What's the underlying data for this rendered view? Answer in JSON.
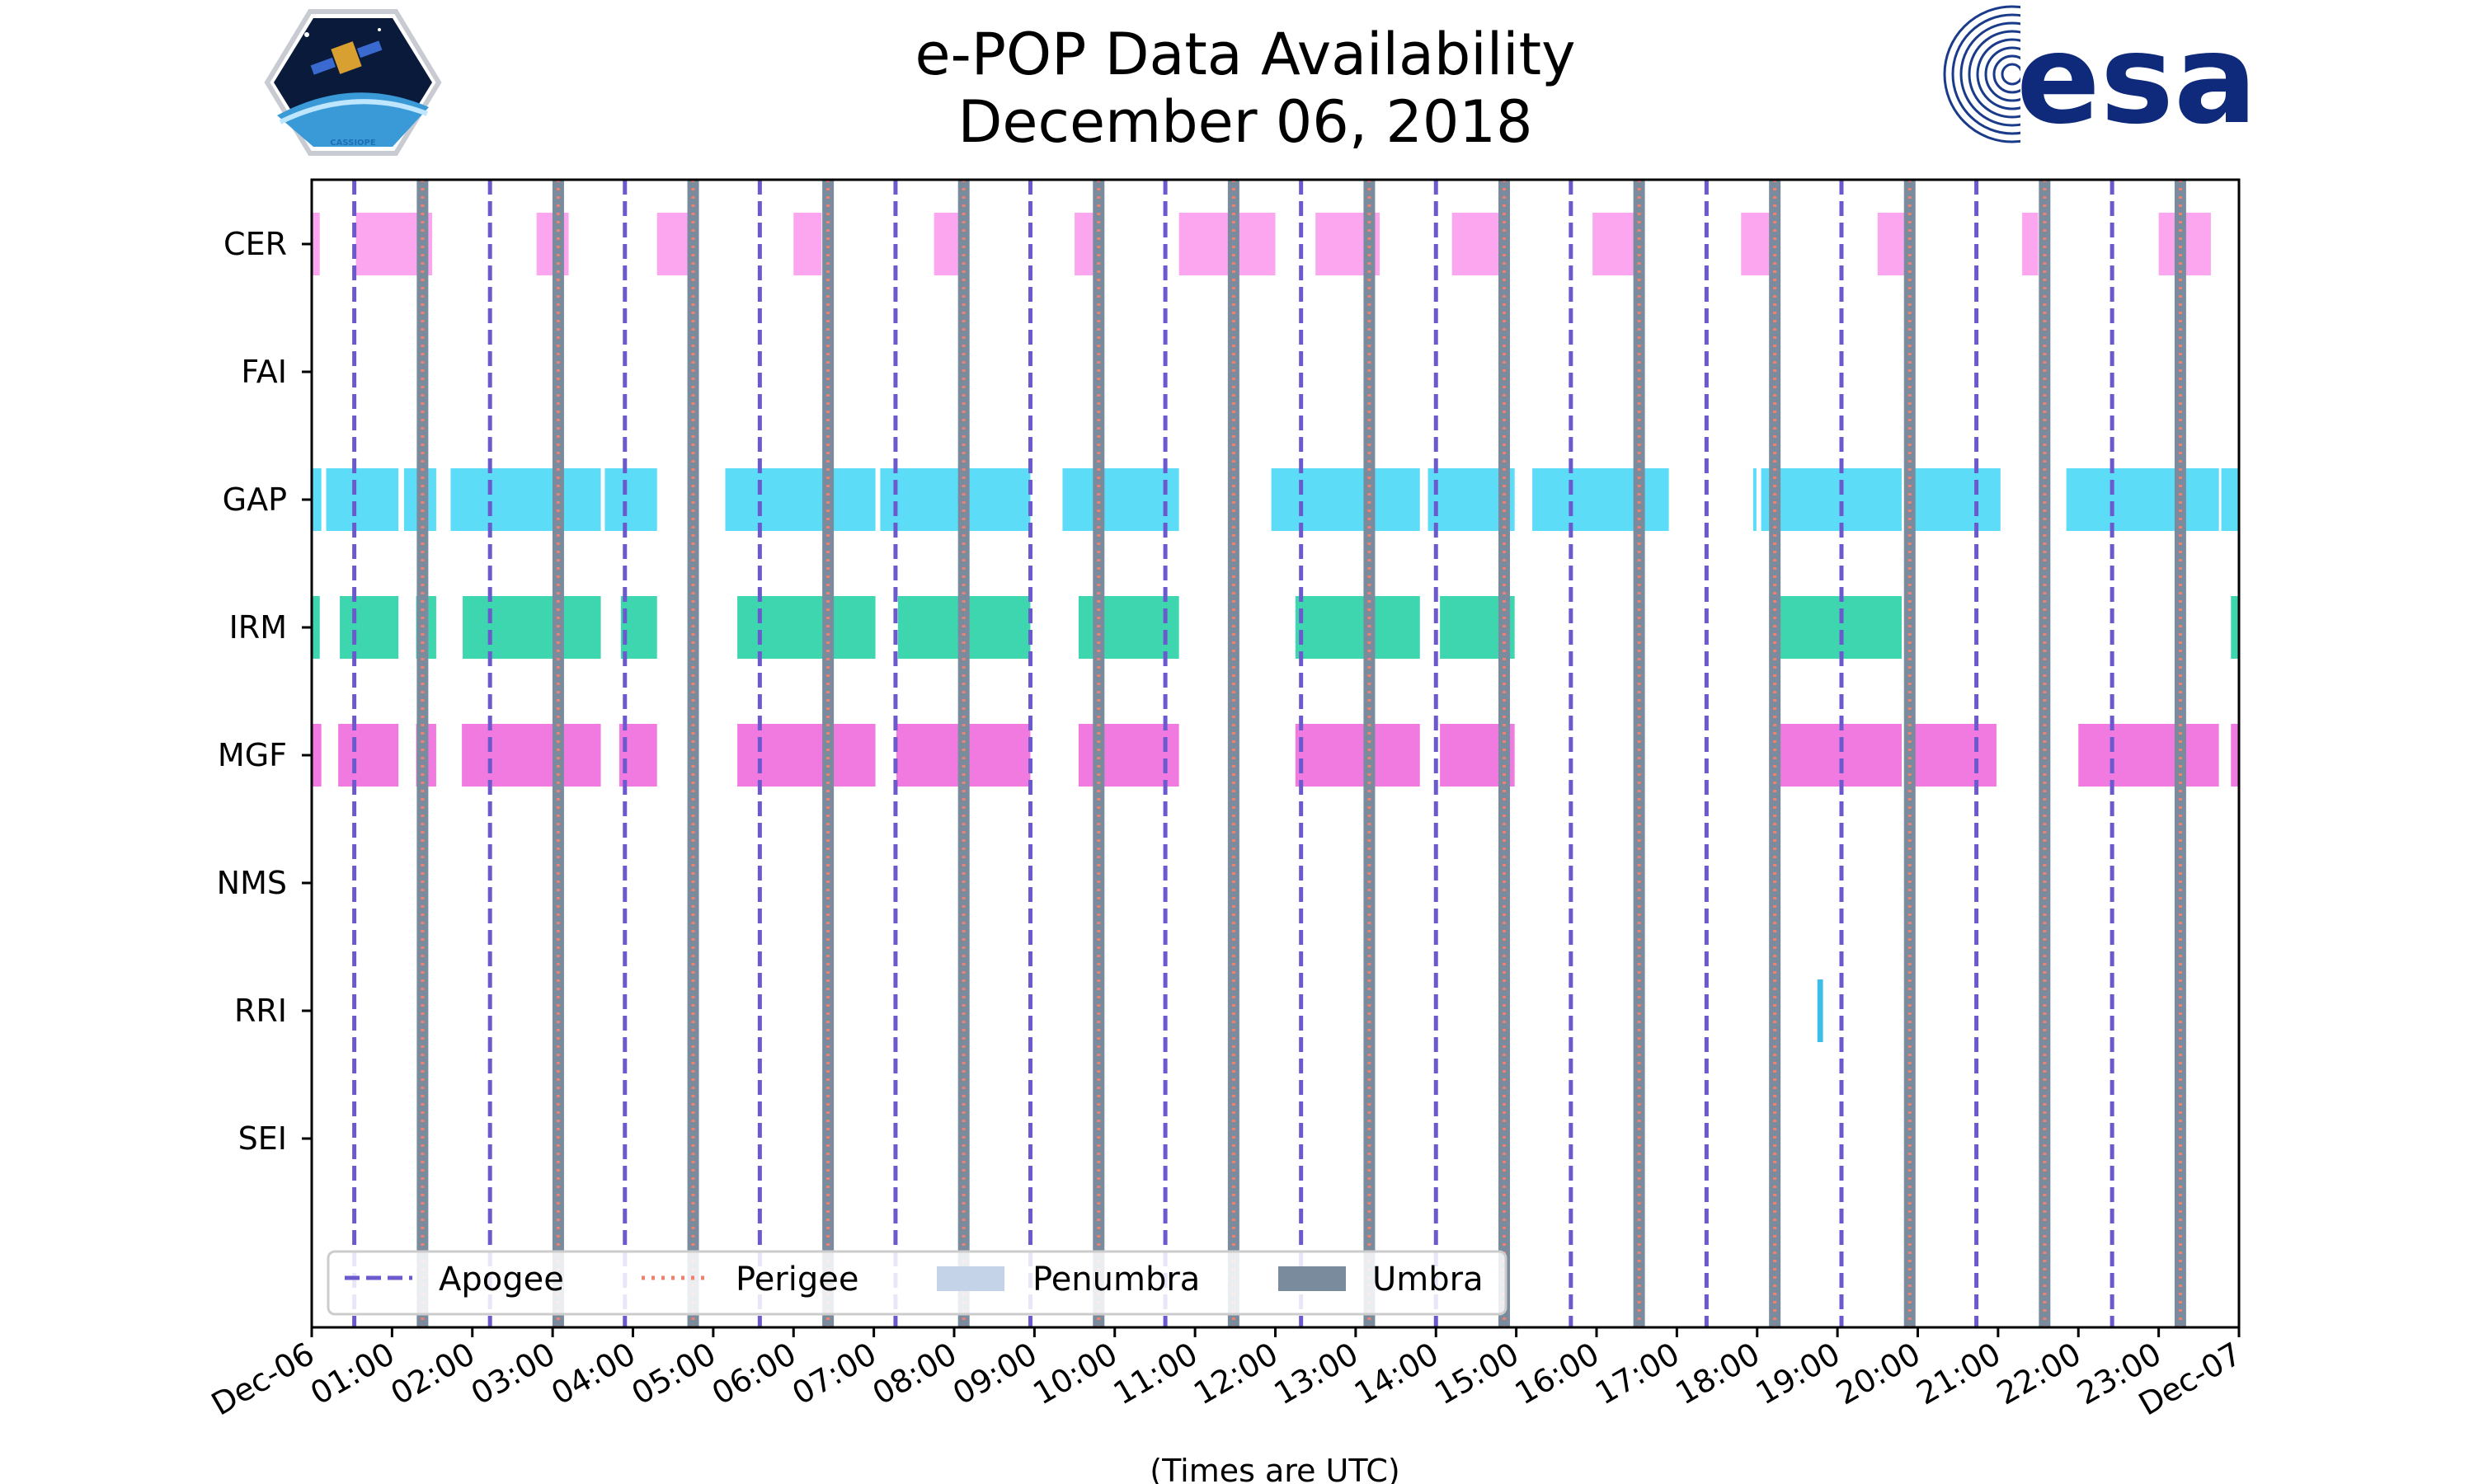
{
  "chart_data": {
    "type": "timeline",
    "title": [
      "e-POP Data Availability",
      "December 06, 2018"
    ],
    "xlabel": "(Times are UTC)",
    "xlim_hours": [
      0,
      24
    ],
    "xticks": [
      {
        "h": 0,
        "label": "Dec-06"
      },
      {
        "h": 1,
        "label": "01:00"
      },
      {
        "h": 2,
        "label": "02:00"
      },
      {
        "h": 3,
        "label": "03:00"
      },
      {
        "h": 4,
        "label": "04:00"
      },
      {
        "h": 5,
        "label": "05:00"
      },
      {
        "h": 6,
        "label": "06:00"
      },
      {
        "h": 7,
        "label": "07:00"
      },
      {
        "h": 8,
        "label": "08:00"
      },
      {
        "h": 9,
        "label": "09:00"
      },
      {
        "h": 10,
        "label": "10:00"
      },
      {
        "h": 11,
        "label": "11:00"
      },
      {
        "h": 12,
        "label": "12:00"
      },
      {
        "h": 13,
        "label": "13:00"
      },
      {
        "h": 14,
        "label": "14:00"
      },
      {
        "h": 15,
        "label": "15:00"
      },
      {
        "h": 16,
        "label": "16:00"
      },
      {
        "h": 17,
        "label": "17:00"
      },
      {
        "h": 18,
        "label": "18:00"
      },
      {
        "h": 19,
        "label": "19:00"
      },
      {
        "h": 20,
        "label": "20:00"
      },
      {
        "h": 21,
        "label": "21:00"
      },
      {
        "h": 22,
        "label": "22:00"
      },
      {
        "h": 23,
        "label": "23:00"
      },
      {
        "h": 24,
        "label": "Dec-07"
      }
    ],
    "instruments": [
      "CER",
      "FAI",
      "GAP",
      "IRM",
      "MGF",
      "NMS",
      "RRI",
      "SEI"
    ],
    "series": [
      {
        "name": "CER",
        "color": "#fca6f0",
        "intervals": [
          [
            0.0,
            0.1
          ],
          [
            0.55,
            1.5
          ],
          [
            2.8,
            3.2
          ],
          [
            4.3,
            4.78
          ],
          [
            6.0,
            6.35
          ],
          [
            7.75,
            8.05
          ],
          [
            9.5,
            9.75
          ],
          [
            10.8,
            12.0
          ],
          [
            12.5,
            13.3
          ],
          [
            14.2,
            14.85
          ],
          [
            15.95,
            16.6
          ],
          [
            17.8,
            18.2
          ],
          [
            19.5,
            19.85
          ],
          [
            21.3,
            21.5
          ],
          [
            23.0,
            23.65
          ]
        ]
      },
      {
        "name": "FAI",
        "color": "#f5b070",
        "intervals": [
          [
            1.34,
            1.38
          ]
        ]
      },
      {
        "name": "GAP",
        "color": "#5ddcf8",
        "intervals": [
          [
            0.0,
            0.12
          ],
          [
            0.18,
            1.08
          ],
          [
            1.15,
            1.55
          ],
          [
            1.73,
            3.6
          ],
          [
            3.65,
            4.3
          ],
          [
            5.15,
            7.02
          ],
          [
            7.08,
            8.95
          ],
          [
            9.35,
            10.8
          ],
          [
            11.95,
            13.8
          ],
          [
            13.9,
            14.98
          ],
          [
            15.2,
            16.9
          ],
          [
            17.95,
            17.98
          ],
          [
            18.05,
            19.8
          ],
          [
            19.85,
            21.03
          ],
          [
            21.85,
            23.75
          ],
          [
            23.78,
            24.0
          ]
        ]
      },
      {
        "name": "IRM",
        "color": "#3dd6ae",
        "intervals": [
          [
            0.0,
            0.1
          ],
          [
            0.35,
            1.08
          ],
          [
            1.3,
            1.55
          ],
          [
            1.88,
            3.6
          ],
          [
            3.85,
            4.3
          ],
          [
            5.3,
            7.02
          ],
          [
            7.3,
            8.95
          ],
          [
            9.55,
            10.8
          ],
          [
            12.25,
            13.8
          ],
          [
            14.05,
            14.98
          ],
          [
            18.15,
            19.8
          ],
          [
            23.9,
            24.0
          ]
        ]
      },
      {
        "name": "MGF",
        "color": "#f07ae0",
        "intervals": [
          [
            0.0,
            0.12
          ],
          [
            0.33,
            1.08
          ],
          [
            1.3,
            1.55
          ],
          [
            1.87,
            3.6
          ],
          [
            3.83,
            4.3
          ],
          [
            5.3,
            7.02
          ],
          [
            7.28,
            8.95
          ],
          [
            9.55,
            10.8
          ],
          [
            12.25,
            13.8
          ],
          [
            14.05,
            14.98
          ],
          [
            18.15,
            19.8
          ],
          [
            19.93,
            20.98
          ],
          [
            22.0,
            23.75
          ],
          [
            23.9,
            24.0
          ]
        ]
      },
      {
        "name": "NMS",
        "color": "#5ddcf8",
        "intervals": []
      },
      {
        "name": "RRI",
        "color": "#3dbde8",
        "intervals": [
          [
            18.75,
            18.82
          ]
        ]
      },
      {
        "name": "SEI",
        "color": "#5ddcf8",
        "intervals": []
      }
    ],
    "apogee_hours": [
      0.53,
      2.22,
      3.9,
      5.58,
      7.27,
      8.95,
      10.63,
      12.32,
      14.0,
      15.68,
      17.37,
      19.05,
      20.73,
      22.42
    ],
    "perigee_hours": [
      1.38,
      3.07,
      4.75,
      6.43,
      8.12,
      9.8,
      11.48,
      13.17,
      14.85,
      16.53,
      18.22,
      19.9,
      21.58,
      23.27
    ],
    "umbra_hours": [
      1.38,
      3.07,
      4.75,
      6.43,
      8.12,
      9.8,
      11.48,
      13.17,
      14.85,
      16.53,
      18.22,
      19.9,
      21.58,
      23.27
    ],
    "legend": [
      {
        "label": "Apogee",
        "style": "dashed",
        "color": "#6a5acd"
      },
      {
        "label": "Perigee",
        "style": "dotted",
        "color": "#f08070"
      },
      {
        "label": "Penumbra",
        "style": "patch",
        "color": "#c5d3e8"
      },
      {
        "label": "Umbra",
        "style": "patch",
        "color": "#7b8b9e"
      }
    ],
    "legend_position": "lower-left"
  },
  "logos": {
    "left": {
      "text": "CASSIOPE"
    },
    "right": {
      "text": "esa"
    }
  },
  "colors": {
    "apogee": "#6a5acd",
    "perigee": "#f08070",
    "umbra": "#7b8b9e",
    "penumbra": "#c5d3e8"
  }
}
